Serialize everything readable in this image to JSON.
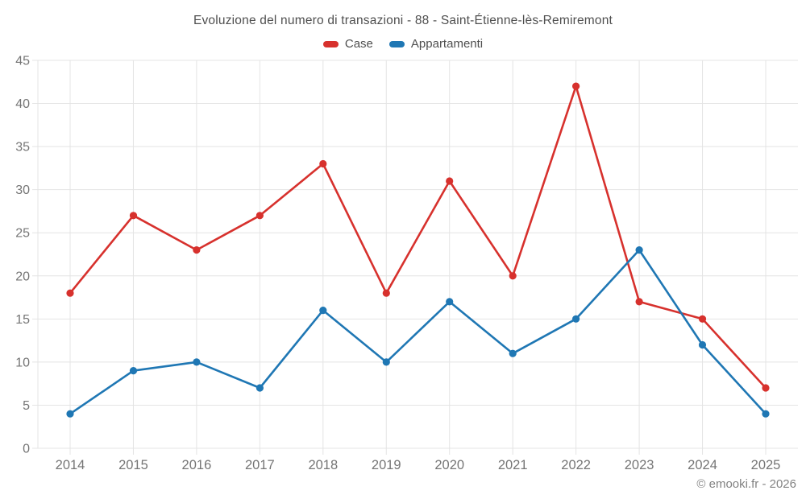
{
  "chart_data": {
    "type": "line",
    "title": "Evoluzione del numero di transazioni - 88 - Saint-Étienne-lès-Remiremont",
    "categories": [
      "2014",
      "2015",
      "2016",
      "2017",
      "2018",
      "2019",
      "2020",
      "2021",
      "2022",
      "2023",
      "2024",
      "2025"
    ],
    "series": [
      {
        "name": "Case",
        "color": "#d7312d",
        "values": [
          18,
          27,
          23,
          27,
          33,
          18,
          31,
          20,
          42,
          17,
          15,
          7
        ]
      },
      {
        "name": "Appartamenti",
        "color": "#1f77b4",
        "values": [
          4,
          9,
          10,
          7,
          16,
          10,
          17,
          11,
          15,
          23,
          12,
          4
        ]
      }
    ],
    "xlabel": "",
    "ylabel": "",
    "ylim": [
      0,
      45
    ],
    "ytick_step": 5,
    "grid": true,
    "legend_position": "top",
    "grid_color": "#e4e4e4",
    "axis_label_color": "#757575",
    "title_color": "#4f4f4f"
  },
  "footer": {
    "text": "© emooki.fr - 2026"
  }
}
